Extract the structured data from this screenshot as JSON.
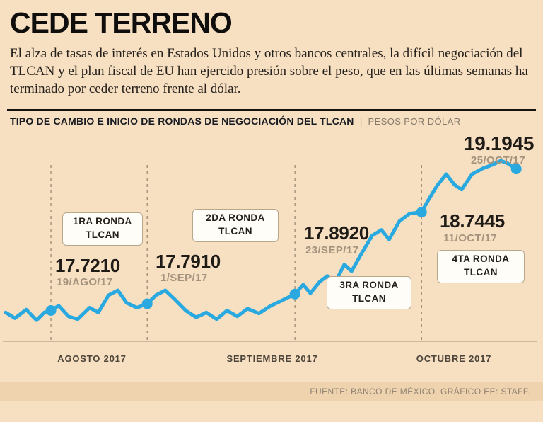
{
  "title": "CEDE TERRENO",
  "lede": "El alza de tasas de interés en Estados Unidos y otros bancos centrales, la difícil negociación del TLCAN y el plan fiscal de EU han ejercido presión sobre el peso, que en las últimas semanas ha terminado por ceder terreno frente al dólar.",
  "section_header": {
    "title": "TIPO DE CAMBIO E INICIO DE RONDAS DE NEGOCIACIÓN DEL TLCAN",
    "separator": "|",
    "units": "PESOS POR DÓLAR"
  },
  "footer": {
    "source": "FUENTE: BANCO DE MÉXICO. GRÁFICO EE: STAFF."
  },
  "colors": {
    "background": "#f7dfc2",
    "footer_band": "#efd3af",
    "line": "#29a9e0",
    "axis": "#b3a287",
    "dash": "#93846f",
    "value_text": "#1f1b16",
    "date_text": "#a4947e"
  },
  "chart_data": {
    "type": "line",
    "title": "TIPO DE CAMBIO E INICIO DE RONDAS DE NEGOCIACIÓN DEL TLCAN",
    "units": "PESOS POR DÓLAR",
    "x_axis_labels": [
      "AGOSTO 2017",
      "SEPTIEMBRE 2017",
      "OCTUBRE 2017"
    ],
    "y_domain": [
      17.4,
      19.42
    ],
    "grid": false,
    "legend": false,
    "series": [
      {
        "name": "Tipo de cambio peso-dólar",
        "points": [
          [
            0.0,
            17.7
          ],
          [
            0.018,
            17.64
          ],
          [
            0.04,
            17.73
          ],
          [
            0.06,
            17.62
          ],
          [
            0.075,
            17.7
          ],
          [
            0.088,
            17.721
          ],
          [
            0.103,
            17.77
          ],
          [
            0.122,
            17.66
          ],
          [
            0.14,
            17.63
          ],
          [
            0.163,
            17.75
          ],
          [
            0.18,
            17.7
          ],
          [
            0.2,
            17.88
          ],
          [
            0.218,
            17.93
          ],
          [
            0.235,
            17.8
          ],
          [
            0.255,
            17.75
          ],
          [
            0.275,
            17.791
          ],
          [
            0.292,
            17.88
          ],
          [
            0.31,
            17.93
          ],
          [
            0.33,
            17.83
          ],
          [
            0.35,
            17.72
          ],
          [
            0.37,
            17.65
          ],
          [
            0.39,
            17.7
          ],
          [
            0.41,
            17.63
          ],
          [
            0.43,
            17.72
          ],
          [
            0.45,
            17.66
          ],
          [
            0.47,
            17.74
          ],
          [
            0.492,
            17.69
          ],
          [
            0.515,
            17.77
          ],
          [
            0.535,
            17.82
          ],
          [
            0.562,
            17.892
          ],
          [
            0.578,
            17.99
          ],
          [
            0.592,
            17.9
          ],
          [
            0.61,
            18.02
          ],
          [
            0.625,
            18.08
          ],
          [
            0.64,
            18.01
          ],
          [
            0.658,
            18.2
          ],
          [
            0.672,
            18.13
          ],
          [
            0.692,
            18.32
          ],
          [
            0.712,
            18.5
          ],
          [
            0.73,
            18.56
          ],
          [
            0.745,
            18.46
          ],
          [
            0.765,
            18.65
          ],
          [
            0.785,
            18.73
          ],
          [
            0.808,
            18.7445
          ],
          [
            0.82,
            18.86
          ],
          [
            0.838,
            19.02
          ],
          [
            0.856,
            19.14
          ],
          [
            0.872,
            19.03
          ],
          [
            0.886,
            18.98
          ],
          [
            0.906,
            19.14
          ],
          [
            0.927,
            19.2
          ],
          [
            0.947,
            19.24
          ],
          [
            0.962,
            19.28
          ],
          [
            0.976,
            19.25
          ],
          [
            0.992,
            19.1945
          ]
        ]
      }
    ],
    "markers": [
      {
        "point": 5,
        "label": "17.7210",
        "date": "19/AGO/17",
        "dashed": true
      },
      {
        "point": 15,
        "label": "17.7910",
        "date": "1/SEP/17",
        "dashed": true
      },
      {
        "point": 29,
        "label": "17.8920",
        "date": "23/SEP/17",
        "dashed": true
      },
      {
        "point": 43,
        "label": "18.7445",
        "date": "11/OCT/17",
        "dashed": true
      },
      {
        "point": 54,
        "label": "19.1945",
        "date": "25/OCT/17",
        "dashed": false
      }
    ],
    "rounds": [
      {
        "line1": "1RA RONDA",
        "line2": "TLCAN"
      },
      {
        "line1": "2DA RONDA",
        "line2": "TLCAN"
      },
      {
        "line1": "3RA RONDA",
        "line2": "TLCAN"
      },
      {
        "line1": "4TA RONDA",
        "line2": "TLCAN"
      }
    ]
  }
}
